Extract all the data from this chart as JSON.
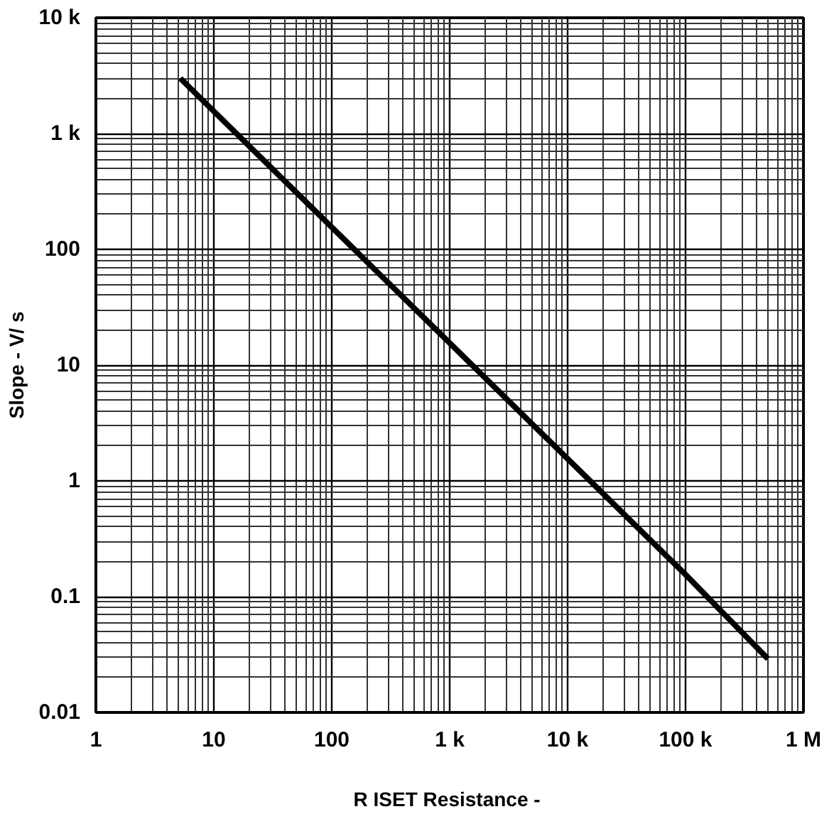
{
  "chart_data": {
    "type": "line",
    "xlabel": "R  ISET Resistance -",
    "ylabel": "Slope - V/ s",
    "log": "xy",
    "grid": true,
    "line_style": "solid",
    "xlim": [
      1,
      1000000
    ],
    "ylim": [
      0.01,
      10000
    ],
    "xticks": [
      1,
      10,
      100,
      {
        "value": 1000,
        "label": "1 k"
      },
      {
        "value": 10000,
        "label": "10 k"
      },
      {
        "value": 100000,
        "label": "100 k"
      },
      {
        "value": 1000000,
        "label": "1 M"
      }
    ],
    "yticks": [
      0.01,
      0.1,
      1,
      10,
      100,
      {
        "value": 1000,
        "label": "1 k"
      },
      {
        "value": 10000,
        "label": "10 k"
      }
    ],
    "series": [
      {
        "color": "#000000",
        "x": [
          5.2,
          100,
          1000,
          10000,
          100000,
          500000
        ],
        "values": [
          3000,
          155,
          15.5,
          1.55,
          0.155,
          0.029
        ]
      }
    ]
  }
}
